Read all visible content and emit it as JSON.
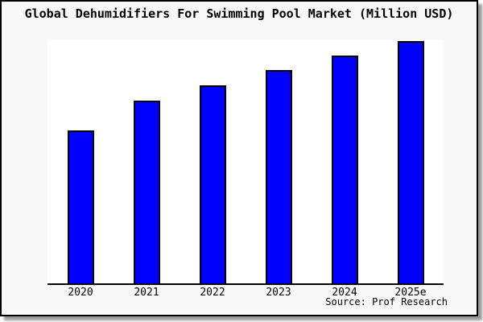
{
  "window": {
    "background": "#f8f8f8",
    "frame_border_color": "#000000",
    "shadow_color": "#9a9a9a"
  },
  "chart_data": {
    "type": "bar",
    "title": "Global Dehumidifiers For Swimming Pool Market (Million USD)",
    "categories": [
      "2020",
      "2021",
      "2022",
      "2023",
      "2024",
      "2025e"
    ],
    "values": [
      190,
      227,
      246,
      265,
      283,
      301
    ],
    "ylim": [
      0,
      303
    ],
    "xlabel": "",
    "ylabel": "",
    "grid": false,
    "legend": false,
    "y_axis_labels_visible": false,
    "bar_color": "#0000ff",
    "bar_border_color": "#000000",
    "plot_background": "#ffffff"
  },
  "source": {
    "label": "Source: Prof Research"
  }
}
